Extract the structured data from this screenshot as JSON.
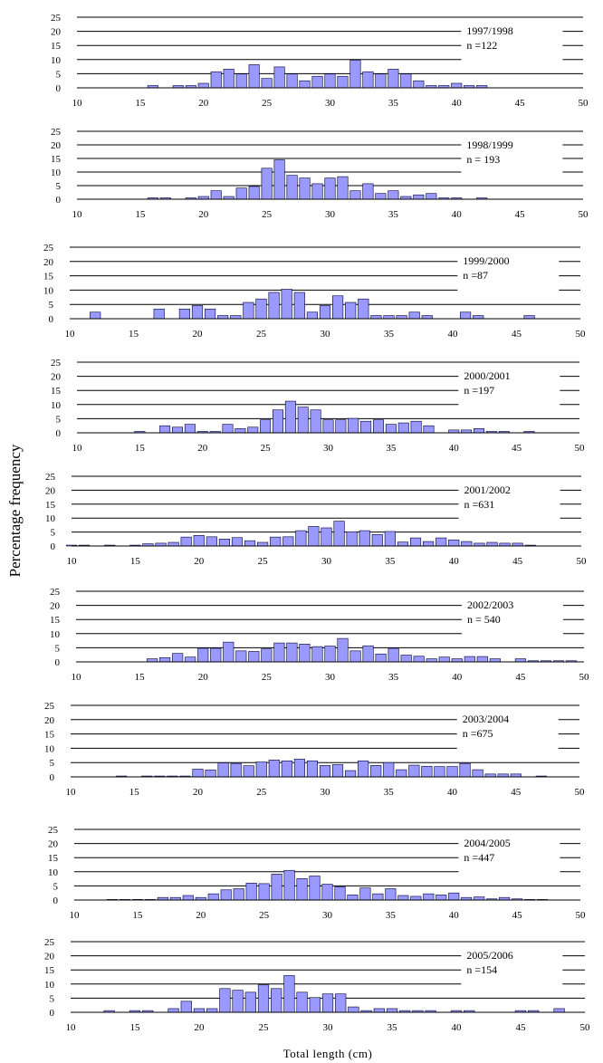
{
  "chart_data": {
    "type": "bar",
    "ylabel": "Percentage frequency",
    "xlabel": "Total length (cm)",
    "x_ticks": [
      "10",
      "15",
      "20",
      "25",
      "30",
      "35",
      "40",
      "45",
      "50"
    ],
    "y_ticks": [
      "0",
      "5",
      "10",
      "15",
      "20",
      "25"
    ],
    "xlim": [
      10,
      50
    ],
    "ylim": [
      0,
      25
    ],
    "grid": "horizontal",
    "bar_color": "#9999ff",
    "panels": [
      {
        "season": "1997/1998",
        "n_label": "n =122",
        "x": [
          16,
          18,
          19,
          20,
          21,
          22,
          23,
          24,
          25,
          26,
          27,
          28,
          29,
          30,
          31,
          32,
          33,
          34,
          35,
          36,
          37,
          38,
          39,
          40,
          41,
          42
        ],
        "values": [
          0.8,
          0.8,
          0.8,
          1.6,
          5.7,
          6.6,
          4.9,
          8.2,
          3.3,
          7.4,
          4.9,
          2.5,
          4.1,
          4.9,
          4.1,
          9.8,
          5.7,
          4.9,
          6.6,
          4.9,
          2.5,
          0.8,
          0.8,
          1.6,
          0.8,
          0.8
        ]
      },
      {
        "season": "1998/1999",
        "n_label": "n = 193",
        "x": [
          16,
          17,
          19,
          20,
          21,
          22,
          23,
          24,
          25,
          26,
          27,
          28,
          29,
          30,
          31,
          32,
          33,
          34,
          35,
          36,
          37,
          38,
          39,
          40,
          42
        ],
        "values": [
          0.5,
          0.5,
          0.5,
          1.0,
          3.1,
          1.0,
          4.1,
          4.7,
          11.4,
          14.5,
          8.8,
          7.8,
          5.7,
          7.8,
          8.3,
          3.1,
          5.7,
          2.1,
          3.1,
          1.0,
          1.6,
          2.1,
          0.5,
          0.5,
          0.5
        ]
      },
      {
        "season": "1999/2000",
        "n_label": "n =87",
        "x": [
          12,
          17,
          19,
          20,
          21,
          22,
          23,
          24,
          25,
          26,
          27,
          28,
          29,
          30,
          31,
          32,
          33,
          34,
          35,
          36,
          37,
          38,
          41,
          42,
          46
        ],
        "values": [
          2.3,
          3.4,
          3.4,
          4.6,
          3.4,
          1.1,
          1.1,
          5.7,
          6.9,
          9.2,
          10.3,
          9.2,
          2.3,
          4.6,
          8.0,
          5.7,
          6.9,
          1.1,
          1.1,
          1.1,
          2.3,
          1.1,
          2.3,
          1.1,
          1.1
        ]
      },
      {
        "season": "2000/2001",
        "n_label": "n =197",
        "x": [
          15,
          17,
          18,
          19,
          20,
          21,
          22,
          23,
          24,
          25,
          26,
          27,
          28,
          29,
          30,
          31,
          32,
          33,
          34,
          35,
          36,
          37,
          38,
          40,
          41,
          42,
          43,
          44,
          46
        ],
        "values": [
          0.5,
          2.5,
          2.0,
          3.0,
          0.5,
          0.5,
          3.0,
          1.5,
          2.0,
          4.6,
          8.1,
          11.2,
          9.1,
          8.1,
          4.6,
          4.6,
          5.1,
          4.1,
          4.6,
          3.0,
          3.5,
          4.1,
          2.5,
          1.0,
          1.0,
          1.5,
          0.5,
          0.5,
          0.5
        ]
      },
      {
        "season": "2001/2002",
        "n_label": "n =631",
        "x": [
          10,
          11,
          13,
          15,
          16,
          17,
          18,
          19,
          20,
          21,
          22,
          23,
          24,
          25,
          26,
          27,
          28,
          29,
          30,
          31,
          32,
          33,
          34,
          35,
          36,
          37,
          38,
          39,
          40,
          41,
          42,
          43,
          44,
          45,
          46
        ],
        "values": [
          0.3,
          0.3,
          0.3,
          0.3,
          0.8,
          1.0,
          1.3,
          3.2,
          3.8,
          3.3,
          2.5,
          3.0,
          1.9,
          1.3,
          3.2,
          3.3,
          5.5,
          7.0,
          6.5,
          8.9,
          5.1,
          5.5,
          4.1,
          5.2,
          1.4,
          2.9,
          1.6,
          2.9,
          2.2,
          1.6,
          1.0,
          1.3,
          1.0,
          1.0,
          0.3
        ]
      },
      {
        "season": "2002/2003",
        "n_label": "n = 540",
        "x": [
          16,
          17,
          18,
          19,
          20,
          21,
          22,
          23,
          24,
          25,
          26,
          27,
          28,
          29,
          30,
          31,
          32,
          33,
          34,
          35,
          36,
          37,
          38,
          39,
          40,
          41,
          42,
          43,
          45,
          46,
          47,
          48,
          49
        ],
        "values": [
          1.1,
          1.5,
          3.0,
          1.7,
          4.8,
          4.8,
          7.0,
          3.9,
          3.7,
          4.6,
          6.7,
          6.7,
          6.3,
          5.4,
          5.6,
          8.3,
          3.9,
          5.7,
          2.8,
          4.8,
          2.4,
          2.0,
          1.1,
          1.7,
          1.1,
          1.9,
          1.9,
          1.1,
          1.1,
          0.4,
          0.4,
          0.4,
          0.4
        ]
      },
      {
        "season": "2003/2004",
        "n_label": "n =675",
        "x": [
          14,
          16,
          17,
          18,
          19,
          20,
          21,
          22,
          23,
          24,
          25,
          26,
          27,
          28,
          29,
          30,
          31,
          32,
          33,
          34,
          35,
          36,
          37,
          38,
          39,
          40,
          41,
          42,
          43,
          44,
          45,
          47
        ],
        "values": [
          0.3,
          0.3,
          0.3,
          0.3,
          0.3,
          2.7,
          2.4,
          4.9,
          4.7,
          3.9,
          5.2,
          5.9,
          5.6,
          6.2,
          5.6,
          4.0,
          4.3,
          2.2,
          5.6,
          4.0,
          5.0,
          2.5,
          4.1,
          3.7,
          3.6,
          3.6,
          4.7,
          2.5,
          1.0,
          1.0,
          1.0,
          0.3
        ]
      },
      {
        "season": "2004/2005",
        "n_label": "n =447",
        "x": [
          13,
          14,
          15,
          16,
          17,
          18,
          19,
          20,
          21,
          22,
          23,
          24,
          25,
          26,
          27,
          28,
          29,
          30,
          31,
          32,
          33,
          34,
          35,
          36,
          37,
          38,
          39,
          40,
          41,
          42,
          43,
          44,
          45,
          46,
          47
        ],
        "values": [
          0.2,
          0.2,
          0.2,
          0.2,
          0.9,
          0.9,
          1.6,
          0.9,
          2.2,
          3.6,
          4.0,
          6.0,
          5.8,
          9.2,
          10.5,
          7.6,
          8.5,
          5.6,
          4.7,
          1.8,
          4.3,
          2.2,
          4.0,
          1.6,
          1.3,
          2.2,
          1.8,
          2.5,
          0.9,
          1.1,
          0.4,
          0.9,
          0.4,
          0.2,
          0.2
        ]
      },
      {
        "season": "2005/2006",
        "n_label": "n =154",
        "x": [
          13,
          15,
          16,
          18,
          19,
          20,
          21,
          22,
          23,
          24,
          25,
          26,
          27,
          28,
          29,
          30,
          31,
          32,
          33,
          34,
          35,
          36,
          37,
          38,
          40,
          41,
          45,
          46,
          48
        ],
        "values": [
          0.6,
          0.6,
          0.6,
          1.3,
          3.9,
          1.3,
          1.3,
          8.4,
          7.8,
          7.1,
          9.7,
          8.4,
          13.0,
          7.1,
          5.2,
          6.5,
          6.5,
          1.9,
          0.6,
          1.3,
          1.3,
          0.6,
          0.6,
          0.6,
          0.6,
          0.6,
          0.6,
          0.6,
          1.3
        ]
      }
    ]
  }
}
